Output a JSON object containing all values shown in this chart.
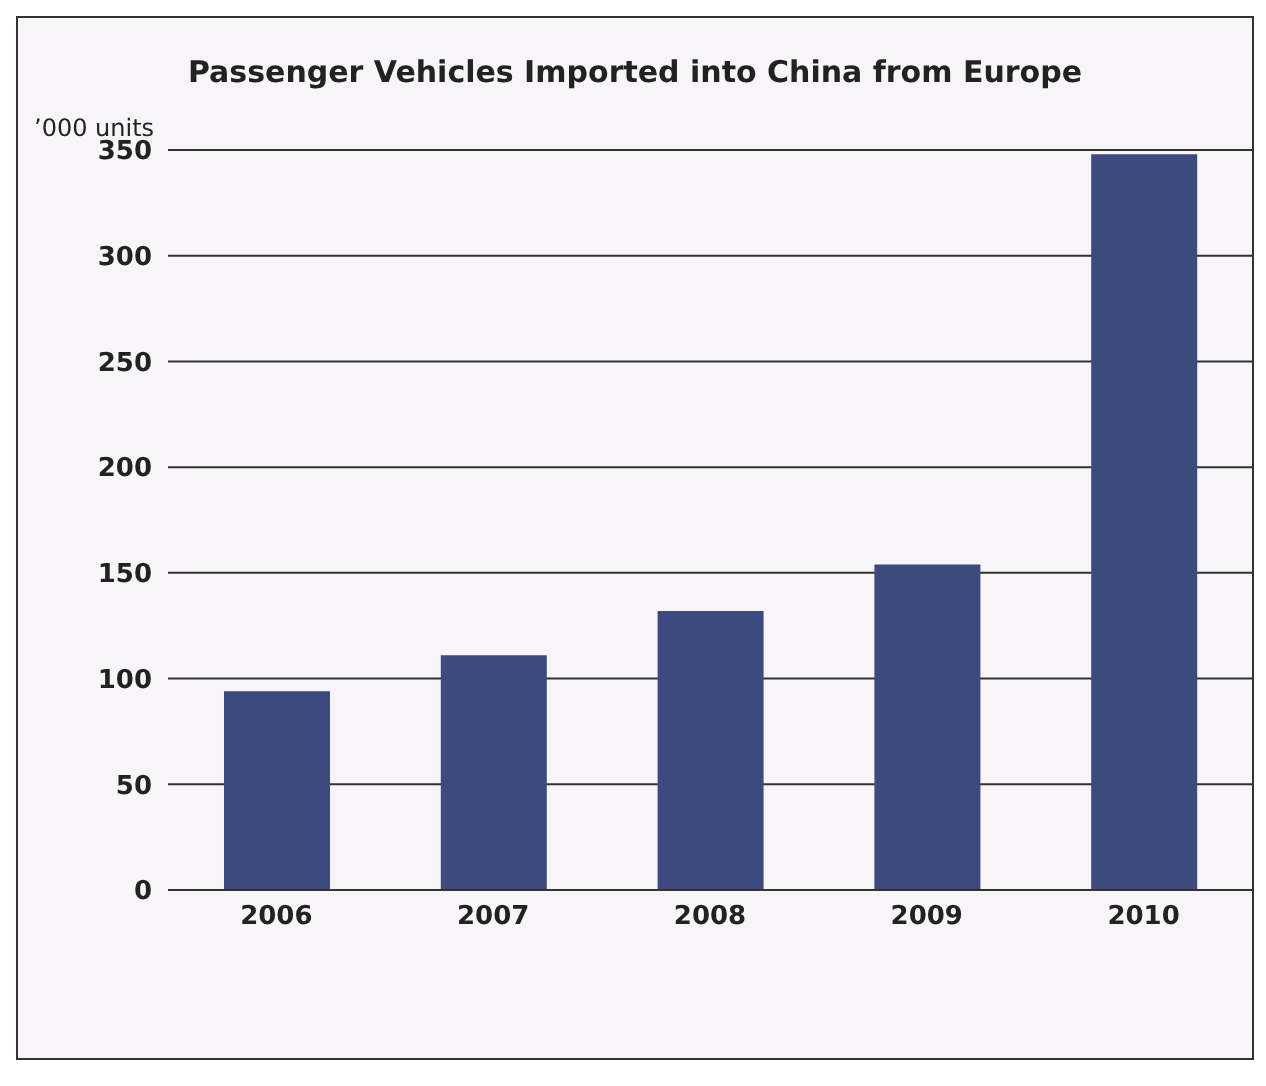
{
  "chart_data": {
    "type": "bar",
    "title": "Passenger Vehicles Imported into China from Europe",
    "ylabel": "’000 units",
    "categories": [
      "2006",
      "2007",
      "2008",
      "2009",
      "2010"
    ],
    "values": [
      94,
      111,
      132,
      154,
      348
    ],
    "color": "#3d4a7e",
    "ylim": [
      0,
      350
    ],
    "yticks": [
      0,
      50,
      100,
      150,
      200,
      250,
      300,
      350
    ],
    "grid": "y",
    "legend": false
  }
}
